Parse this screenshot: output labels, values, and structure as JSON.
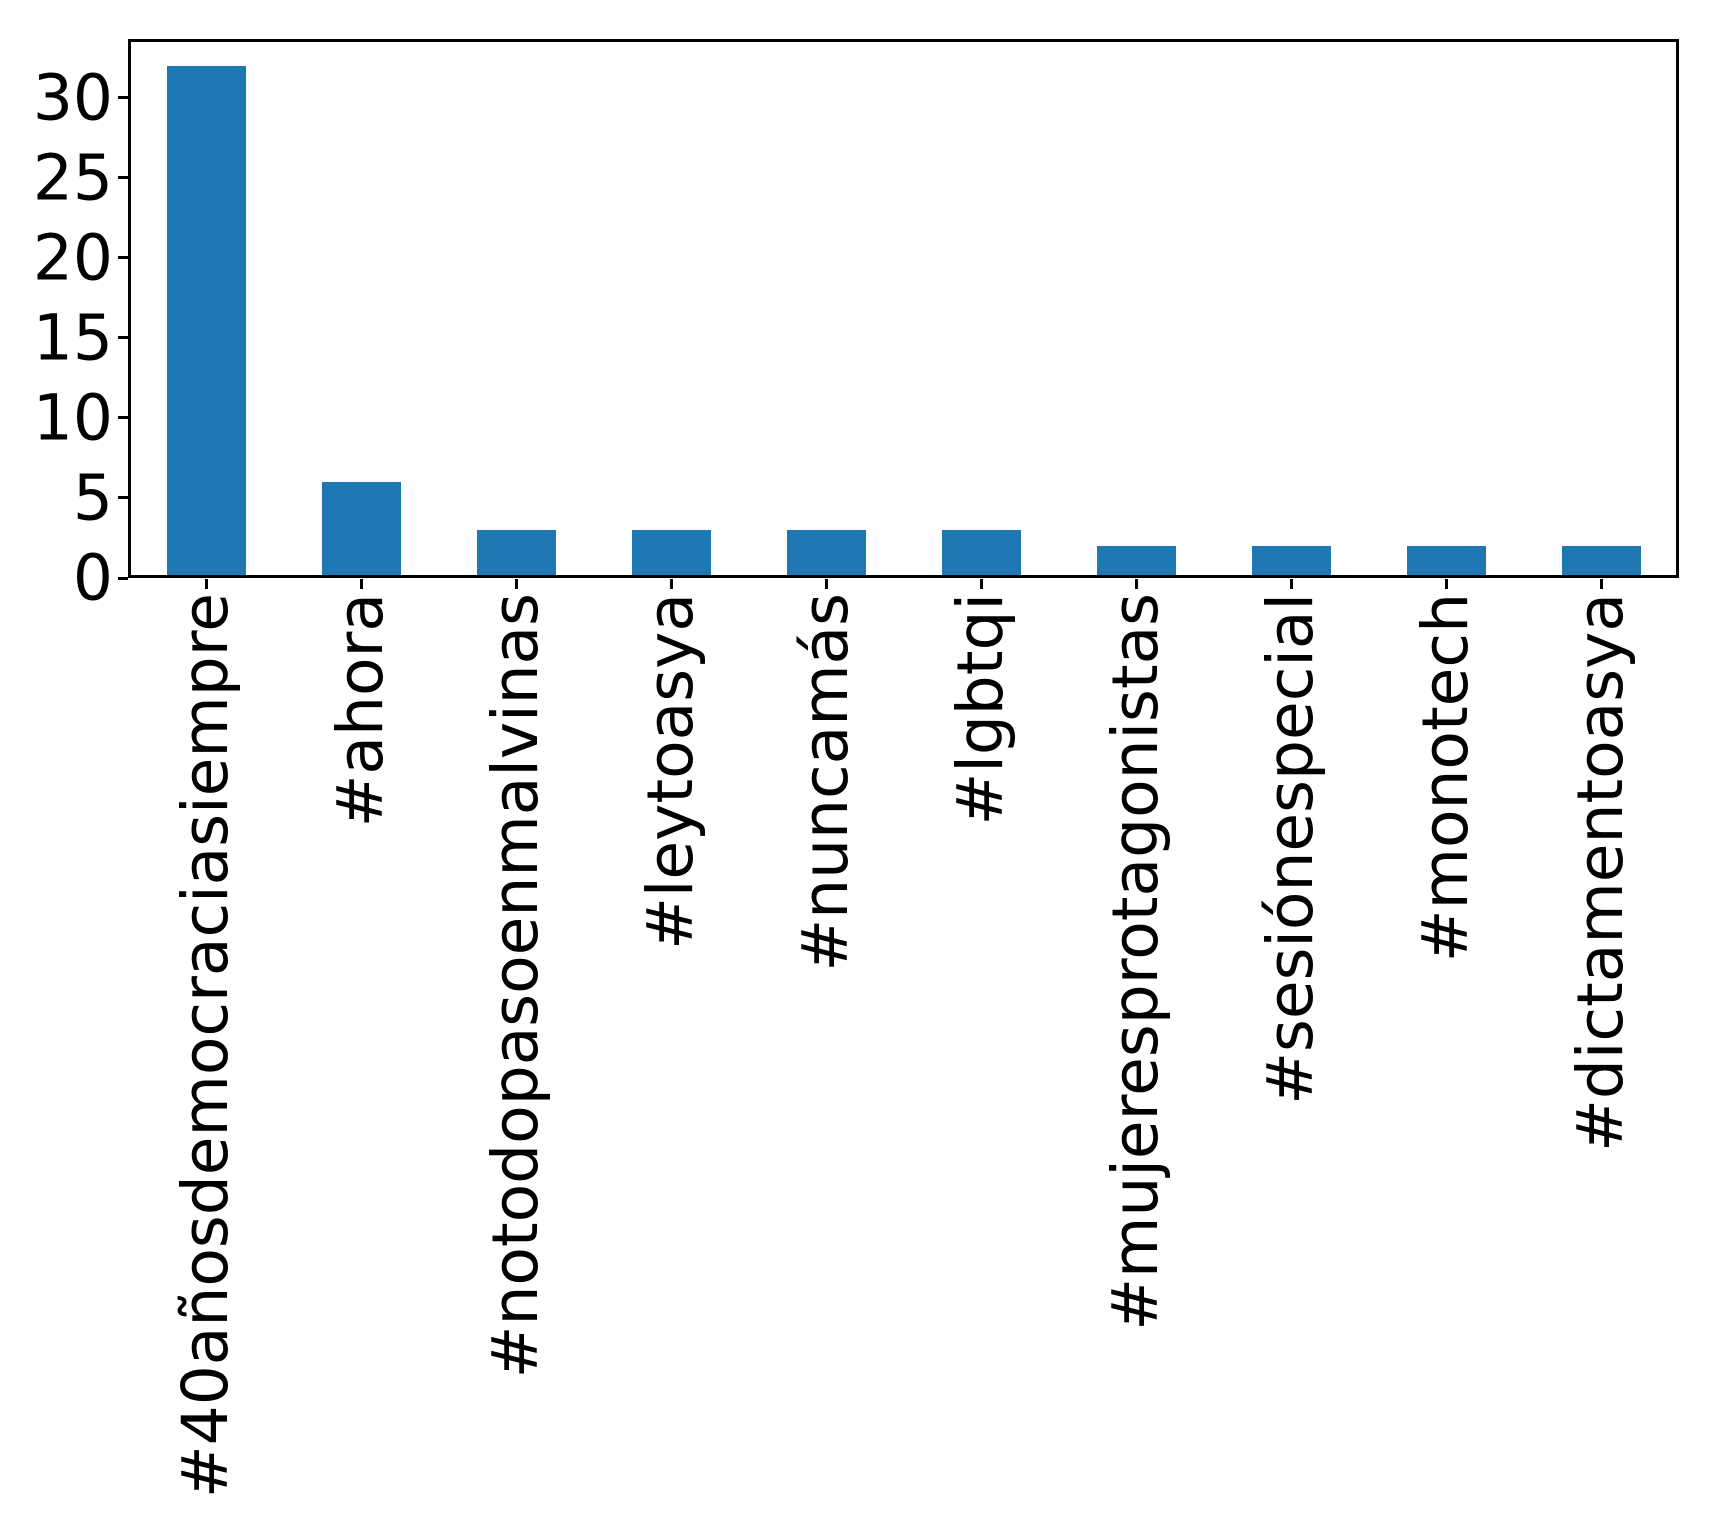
{
  "figure": {
    "background_color": "#ffffff",
    "bar_color": "#1f77b4",
    "axis_color": "#000000",
    "tick_label_color": "#000000"
  },
  "chart_data": {
    "type": "bar",
    "title": "",
    "xlabel": "",
    "ylabel": "",
    "categories": [
      "#40añosdemocraciasiempre",
      "#ahora",
      "#notodopasoenmalvinas",
      "#leytoasya",
      "#nuncamás",
      "#lgbtqi",
      "#mujeresprotagonistas",
      "#sesiónespecial",
      "#monotech",
      "#dictamentoasya"
    ],
    "values": [
      32,
      6,
      3,
      3,
      3,
      3,
      2,
      2,
      2,
      2
    ],
    "yticks": [
      0,
      5,
      10,
      15,
      20,
      25,
      30
    ],
    "ylim": [
      0,
      33.6
    ],
    "x_tick_label_rotation": 90,
    "bar_width_fraction": 0.51,
    "grid": false,
    "legend_position": "none"
  }
}
